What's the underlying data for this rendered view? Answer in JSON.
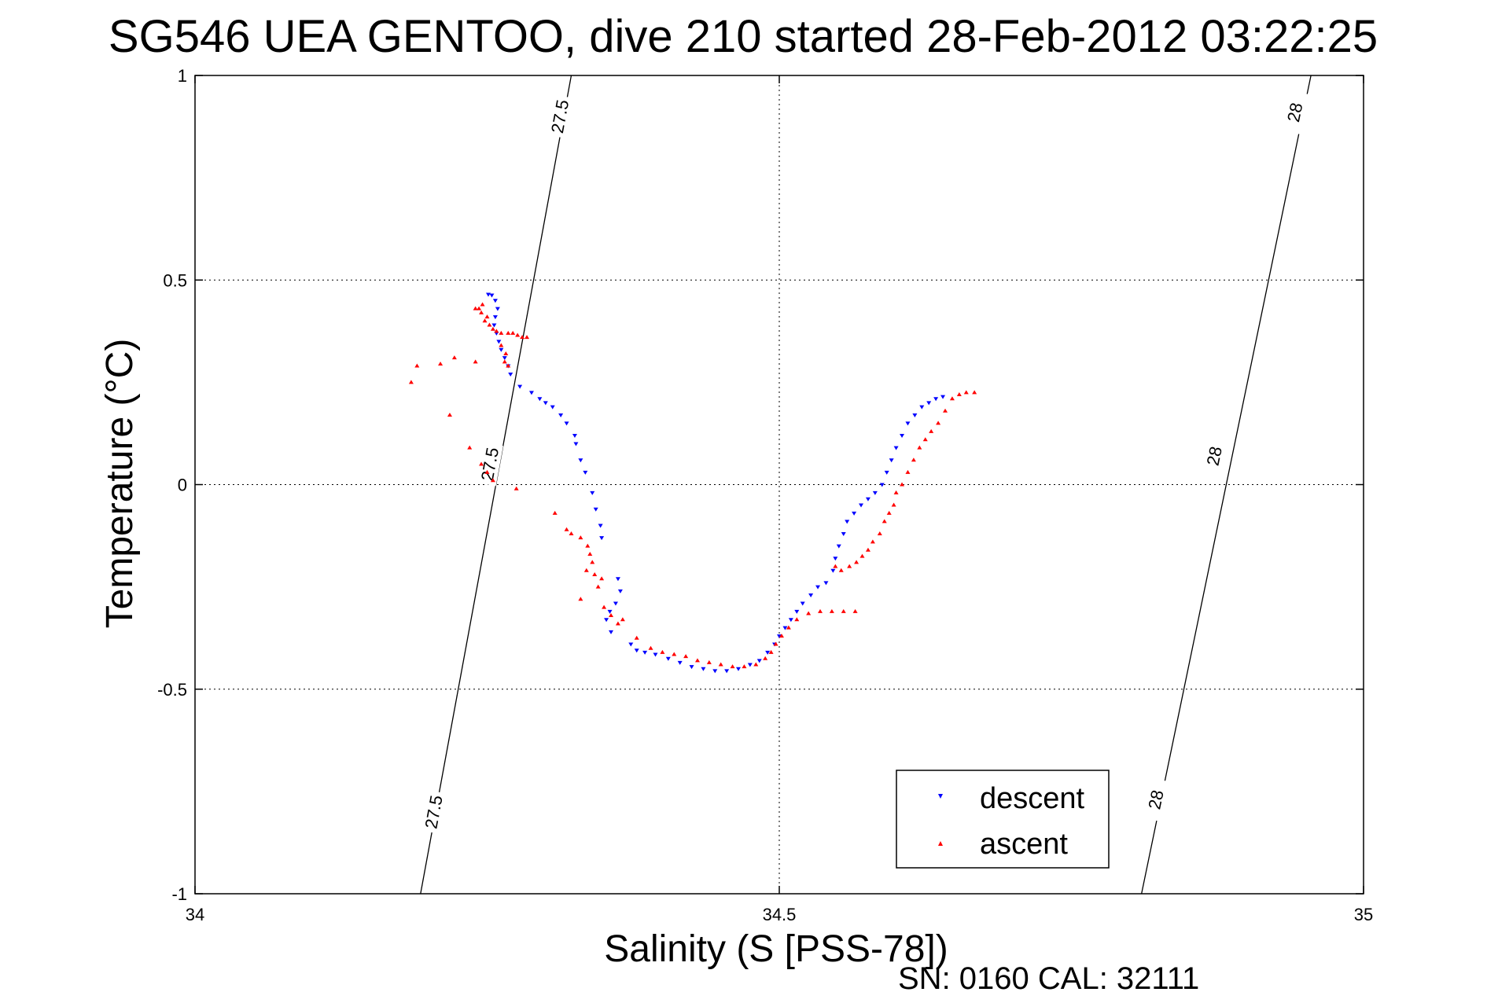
{
  "chart_data": {
    "type": "scatter",
    "title": "SG546 UEA GENTOO, dive 210 started 28-Feb-2012 03:22:25",
    "xlabel": "Salinity (S [PSS-78])",
    "ylabel": "Temperature (°C)",
    "xlim": [
      34,
      35
    ],
    "ylim": [
      -1,
      1
    ],
    "xticks": [
      34,
      34.5,
      35
    ],
    "xtick_labels": [
      "34",
      "34.5",
      "35"
    ],
    "yticks": [
      -1,
      -0.5,
      0,
      0.5,
      1
    ],
    "ytick_labels": [
      "-1",
      "-0.5",
      "0",
      "0.5",
      "1"
    ],
    "grid": true,
    "legend_position": "bottom-right",
    "footer": "SN: 0160  CAL: 32111",
    "density_contours": [
      {
        "value": "27.5",
        "x": [
          34.193,
          34.322
        ],
        "y": [
          -1,
          1
        ],
        "labels": [
          {
            "text": "27.5",
            "x": 34.204,
            "y": -0.8
          },
          {
            "text": "27.5",
            "x": 34.252,
            "y": 0.05
          },
          {
            "text": "27.5",
            "x": 34.312,
            "y": 0.9
          }
        ]
      },
      {
        "value": "28",
        "x": [
          34.81,
          34.955
        ],
        "y": [
          -1,
          1
        ],
        "labels": [
          {
            "text": "28",
            "x": 34.822,
            "y": -0.77
          },
          {
            "text": "28",
            "x": 34.872,
            "y": 0.07
          },
          {
            "text": "28",
            "x": 34.941,
            "y": 0.91
          }
        ]
      }
    ],
    "series": [
      {
        "name": "descent",
        "color": "#0000ff",
        "marker": "triangle-down",
        "points": [
          [
            34.251,
            0.465
          ],
          [
            34.254,
            0.463
          ],
          [
            34.257,
            0.45
          ],
          [
            34.259,
            0.43
          ],
          [
            34.257,
            0.41
          ],
          [
            34.256,
            0.39
          ],
          [
            34.258,
            0.37
          ],
          [
            34.26,
            0.35
          ],
          [
            34.262,
            0.33
          ],
          [
            34.265,
            0.31
          ],
          [
            34.268,
            0.29
          ],
          [
            34.27,
            0.27
          ],
          [
            34.278,
            0.24
          ],
          [
            34.288,
            0.225
          ],
          [
            34.295,
            0.21
          ],
          [
            34.3,
            0.2
          ],
          [
            34.306,
            0.19
          ],
          [
            34.313,
            0.17
          ],
          [
            34.318,
            0.15
          ],
          [
            34.325,
            0.12
          ],
          [
            34.326,
            0.1
          ],
          [
            34.33,
            0.06
          ],
          [
            34.334,
            0.03
          ],
          [
            34.34,
            -0.02
          ],
          [
            34.343,
            -0.06
          ],
          [
            34.347,
            -0.1
          ],
          [
            34.348,
            -0.13
          ],
          [
            34.362,
            -0.23
          ],
          [
            34.364,
            -0.26
          ],
          [
            34.36,
            -0.29
          ],
          [
            34.355,
            -0.31
          ],
          [
            34.352,
            -0.33
          ],
          [
            34.356,
            -0.36
          ],
          [
            34.373,
            -0.39
          ],
          [
            34.378,
            -0.405
          ],
          [
            34.385,
            -0.41
          ],
          [
            34.394,
            -0.415
          ],
          [
            34.405,
            -0.425
          ],
          [
            34.415,
            -0.435
          ],
          [
            34.425,
            -0.445
          ],
          [
            34.435,
            -0.45
          ],
          [
            34.445,
            -0.455
          ],
          [
            34.455,
            -0.455
          ],
          [
            34.465,
            -0.45
          ],
          [
            34.475,
            -0.44
          ],
          [
            34.483,
            -0.43
          ],
          [
            34.49,
            -0.41
          ],
          [
            34.496,
            -0.39
          ],
          [
            34.5,
            -0.37
          ],
          [
            34.505,
            -0.35
          ],
          [
            34.51,
            -0.33
          ],
          [
            34.515,
            -0.31
          ],
          [
            34.52,
            -0.29
          ],
          [
            34.527,
            -0.27
          ],
          [
            34.533,
            -0.25
          ],
          [
            34.54,
            -0.24
          ],
          [
            34.546,
            -0.21
          ],
          [
            34.548,
            -0.18
          ],
          [
            34.551,
            -0.15
          ],
          [
            34.555,
            -0.12
          ],
          [
            34.558,
            -0.09
          ],
          [
            34.564,
            -0.07
          ],
          [
            34.57,
            -0.05
          ],
          [
            34.576,
            -0.035
          ],
          [
            34.582,
            -0.02
          ],
          [
            34.588,
            0.0
          ],
          [
            34.592,
            0.03
          ],
          [
            34.596,
            0.06
          ],
          [
            34.6,
            0.09
          ],
          [
            34.605,
            0.12
          ],
          [
            34.61,
            0.15
          ],
          [
            34.616,
            0.17
          ],
          [
            34.622,
            0.19
          ],
          [
            34.628,
            0.2
          ],
          [
            34.634,
            0.21
          ],
          [
            34.64,
            0.215
          ]
        ]
      },
      {
        "name": "ascent",
        "color": "#ff0000",
        "marker": "triangle-up",
        "points": [
          [
            34.185,
            0.25
          ],
          [
            34.19,
            0.29
          ],
          [
            34.21,
            0.295
          ],
          [
            34.222,
            0.31
          ],
          [
            34.24,
            0.3
          ],
          [
            34.246,
            0.44
          ],
          [
            34.243,
            0.43
          ],
          [
            34.24,
            0.43
          ],
          [
            34.245,
            0.42
          ],
          [
            34.25,
            0.41
          ],
          [
            34.248,
            0.4
          ],
          [
            34.252,
            0.39
          ],
          [
            34.255,
            0.38
          ],
          [
            34.258,
            0.375
          ],
          [
            34.262,
            0.37
          ],
          [
            34.268,
            0.37
          ],
          [
            34.272,
            0.37
          ],
          [
            34.276,
            0.365
          ],
          [
            34.28,
            0.36
          ],
          [
            34.284,
            0.36
          ],
          [
            34.262,
            0.34
          ],
          [
            34.266,
            0.32
          ],
          [
            34.265,
            0.3
          ],
          [
            34.268,
            0.29
          ],
          [
            34.218,
            0.17
          ],
          [
            34.235,
            0.09
          ],
          [
            34.245,
            0.05
          ],
          [
            34.25,
            0.03
          ],
          [
            34.255,
            0.01
          ],
          [
            34.275,
            -0.01
          ],
          [
            34.308,
            -0.07
          ],
          [
            34.318,
            -0.11
          ],
          [
            34.322,
            -0.12
          ],
          [
            34.33,
            -0.13
          ],
          [
            34.336,
            -0.15
          ],
          [
            34.338,
            -0.17
          ],
          [
            34.34,
            -0.19
          ],
          [
            34.335,
            -0.21
          ],
          [
            34.342,
            -0.22
          ],
          [
            34.348,
            -0.23
          ],
          [
            34.345,
            -0.25
          ],
          [
            34.33,
            -0.28
          ],
          [
            34.35,
            -0.3
          ],
          [
            34.356,
            -0.32
          ],
          [
            34.362,
            -0.34
          ],
          [
            34.366,
            -0.33
          ],
          [
            34.378,
            -0.375
          ],
          [
            34.39,
            -0.4
          ],
          [
            34.4,
            -0.41
          ],
          [
            34.41,
            -0.415
          ],
          [
            34.42,
            -0.42
          ],
          [
            34.43,
            -0.43
          ],
          [
            34.44,
            -0.435
          ],
          [
            34.45,
            -0.44
          ],
          [
            34.46,
            -0.445
          ],
          [
            34.47,
            -0.445
          ],
          [
            34.48,
            -0.44
          ],
          [
            34.488,
            -0.425
          ],
          [
            34.493,
            -0.41
          ],
          [
            34.497,
            -0.39
          ],
          [
            34.502,
            -0.37
          ],
          [
            34.508,
            -0.35
          ],
          [
            34.515,
            -0.33
          ],
          [
            34.525,
            -0.315
          ],
          [
            34.535,
            -0.31
          ],
          [
            34.545,
            -0.31
          ],
          [
            34.555,
            -0.31
          ],
          [
            34.565,
            -0.31
          ],
          [
            34.548,
            -0.2
          ],
          [
            34.553,
            -0.21
          ],
          [
            34.56,
            -0.2
          ],
          [
            34.566,
            -0.19
          ],
          [
            34.571,
            -0.175
          ],
          [
            34.576,
            -0.16
          ],
          [
            34.58,
            -0.14
          ],
          [
            34.586,
            -0.12
          ],
          [
            34.59,
            -0.09
          ],
          [
            34.594,
            -0.07
          ],
          [
            34.598,
            -0.05
          ],
          [
            34.6,
            -0.02
          ],
          [
            34.605,
            0.0
          ],
          [
            34.61,
            0.03
          ],
          [
            34.615,
            0.06
          ],
          [
            34.62,
            0.09
          ],
          [
            34.625,
            0.11
          ],
          [
            34.63,
            0.13
          ],
          [
            34.636,
            0.15
          ],
          [
            34.642,
            0.18
          ],
          [
            34.648,
            0.21
          ],
          [
            34.654,
            0.22
          ],
          [
            34.66,
            0.225
          ],
          [
            34.667,
            0.225
          ]
        ]
      }
    ]
  }
}
